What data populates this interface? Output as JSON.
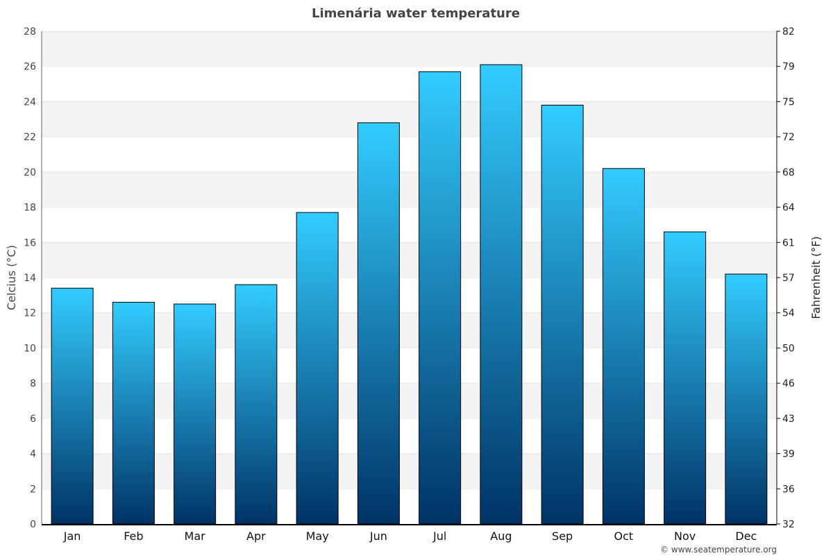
{
  "chart_data": {
    "type": "bar",
    "title": "Limenária water temperature",
    "ylabel": "Celcius (°C)",
    "y2label": "Fahrenheit (°F)",
    "categories": [
      "Jan",
      "Feb",
      "Mar",
      "Apr",
      "May",
      "Jun",
      "Jul",
      "Aug",
      "Sep",
      "Oct",
      "Nov",
      "Dec"
    ],
    "values": [
      13.4,
      12.6,
      12.5,
      13.6,
      17.7,
      22.8,
      25.7,
      26.1,
      23.8,
      20.2,
      16.6,
      14.2
    ],
    "ylim": [
      0,
      28
    ],
    "yticks": [
      0,
      2,
      4,
      6,
      8,
      10,
      12,
      14,
      16,
      18,
      20,
      22,
      24,
      26,
      28
    ],
    "y2ticks": [
      "32",
      "36",
      "39",
      "43",
      "46",
      "50",
      "54",
      "57",
      "61",
      "64",
      "68",
      "72",
      "75",
      "79",
      "82"
    ],
    "grid": true,
    "colors": {
      "bar_top": "#33ccff",
      "bar_bottom": "#003366",
      "band": "#f3f3f3"
    }
  },
  "footer": {
    "credit": "© www.seatemperature.org"
  }
}
